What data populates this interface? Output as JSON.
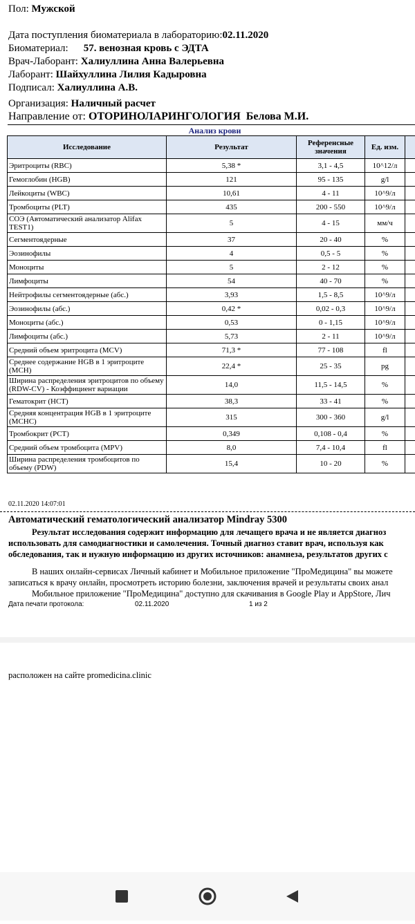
{
  "patient": {
    "sex": {
      "label": "Пол:",
      "value": "Мужской"
    },
    "received": {
      "label": "Дата поступления биоматериала в лабораторию:",
      "value": "02.11.2020"
    },
    "material": {
      "label": "Биоматериал:",
      "value": "57. венозная кровь с ЭДТА"
    },
    "doctor": {
      "label": "Врач-Лаборант:",
      "value": "Халиуллина Анна Валерьевна"
    },
    "laborant": {
      "label": "Лаборант:",
      "value": "Шайхуллина Лилия Кадыровна"
    },
    "signed": {
      "label": "Подписал:",
      "value": "Халиуллина А.В."
    },
    "organization": {
      "label": "Организация:",
      "value": "Наличный расчет"
    },
    "referral": {
      "label": "Направление от:",
      "value": "ОТОРИНОЛАРИНГОЛОГИЯ  Белова М.И."
    }
  },
  "table": {
    "title": "Анализ крови",
    "columns": [
      "Исследование",
      "Результат",
      "Референсные значения",
      "Ед. изм."
    ],
    "rows": [
      [
        "Эритроциты (RBC)",
        "5,38 *",
        "3,1 - 4,5",
        "10^12/л"
      ],
      [
        "Гемоглобин (HGB)",
        "121",
        "95 - 135",
        "g/l"
      ],
      [
        "Лейкоциты (WBC)",
        "10,61",
        "4 - 11",
        "10^9/л"
      ],
      [
        "Тромбоциты (PLT)",
        "435",
        "200 - 550",
        "10^9/л"
      ],
      [
        "СОЭ (Автоматический анализатор Alifax TEST1)",
        "5",
        "4 - 15",
        "мм/ч"
      ],
      [
        "Сегментоядерные",
        "37",
        "20 - 40",
        "%"
      ],
      [
        "Эозинофилы",
        "4",
        "0,5 - 5",
        "%"
      ],
      [
        "Моноциты",
        "5",
        "2 - 12",
        "%"
      ],
      [
        "Лимфоциты",
        "54",
        "40 - 70",
        "%"
      ],
      [
        "Нейтрофилы сегментоядерные (абс.)",
        "3,93",
        "1,5 - 8,5",
        "10^9/л"
      ],
      [
        "Эозинофилы (абс.)",
        "0,42 *",
        "0,02 - 0,3",
        "10^9/л"
      ],
      [
        "Моноциты (абс.)",
        "0,53",
        "0 - 1,15",
        "10^9/л"
      ],
      [
        "Лимфоциты (абс.)",
        "5,73",
        "2 - 11",
        "10^9/л"
      ],
      [
        "Средний объем эритроцита (MCV)",
        "71,3 *",
        "77 - 108",
        "fl"
      ],
      [
        "Среднее содержание HGB в 1 эритроците (MCH)",
        "22,4 *",
        "25 - 35",
        "pg"
      ],
      [
        "Ширина распределения эритроцитов по объему (RDW-CV) - Коэффициент вариации",
        "14,0",
        "11,5 - 14,5",
        "%"
      ],
      [
        "Гематокрит (HCT)",
        "38,3",
        "33 - 41",
        "%"
      ],
      [
        "Средняя концентрация HGB в 1 эритроците (MCHC)",
        "315",
        "300 - 360",
        "g/l"
      ],
      [
        "Тромбокрит (PCT)",
        "0,349",
        "0,108 - 0,4",
        "%"
      ],
      [
        "Средний объем тромбоцита (MPV)",
        "8,0",
        "7,4 - 10,4",
        "fl"
      ],
      [
        "Ширина распределения тромбоцитов по объему (PDW)",
        "15,4",
        "10 - 20",
        "%"
      ]
    ]
  },
  "timestamp": "02.11.2020 14:07:01",
  "analyzer": "Автоматический гематологический анализатор Mindray 5300",
  "disclaimer": [
    "Результат исследования содержит информацию для лечащего врача и не является диагноз",
    "использовать для самодиагностики и самолечения. Точный диагноз ставит врач, используя как",
    "обследования, так и нужную информацию из других источников: анамнеза, результатов других с"
  ],
  "info": [
    "В наших онлайн-сервисах Личный кабинет и Мобильное приложение \"ПроМедицина\" вы можете",
    "записаться к врачу онлайн, просмотреть историю болезни, заключения врачей и результаты своих анал",
    "Мобильное приложение \"ПроМедицина\" доступно для скачивания в Google Play и AppStore, Лич"
  ],
  "footer": {
    "print_date_label": "Дата печати протокола:",
    "print_date": "02.11.2020",
    "page": "1 из 2"
  },
  "page2_text": "расположен на сайте promedicina.clinic"
}
